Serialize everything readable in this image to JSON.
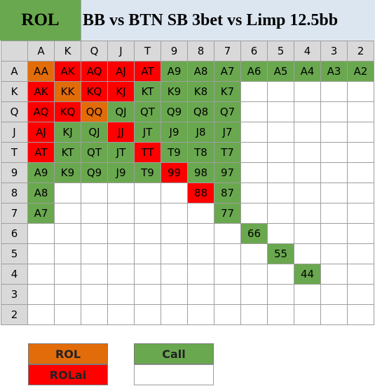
{
  "header": {
    "tag": "ROL",
    "title": "BB vs BTN SB 3bet vs Limp 12.5bb"
  },
  "ranks": [
    "A",
    "K",
    "Q",
    "J",
    "T",
    "9",
    "8",
    "7",
    "6",
    "5",
    "4",
    "3",
    "2"
  ],
  "colors": {
    "call": "#6aa84f",
    "rol": "#e36c0a",
    "rolai": "#ff0000",
    "none": "#ffffff",
    "header_bg": "#d9d9d9",
    "title_bg": "#dce6f1"
  },
  "matrix": {
    "A": {
      "A": "rol",
      "K": "rolai",
      "Q": "rolai",
      "J": "rolai",
      "T": "rolai",
      "9": "call",
      "8": "call",
      "7": "call",
      "6": "call",
      "5": "call",
      "4": "call",
      "3": "call",
      "2": "call"
    },
    "K": {
      "A": "rolai",
      "K": "rol",
      "Q": "rolai",
      "J": "rolai",
      "T": "call",
      "9": "call",
      "8": "call",
      "7": "call"
    },
    "Q": {
      "A": "rolai",
      "K": "rolai",
      "Q": "rol",
      "J": "call",
      "T": "call",
      "9": "call",
      "8": "call",
      "7": "call"
    },
    "J": {
      "A": "rolai",
      "K": "call",
      "Q": "call",
      "J": "rolai",
      "T": "call",
      "9": "call",
      "8": "call",
      "7": "call"
    },
    "T": {
      "A": "rolai",
      "K": "call",
      "Q": "call",
      "J": "call",
      "T": "rolai",
      "9": "call",
      "8": "call",
      "7": "call"
    },
    "9": {
      "A": "call",
      "K": "call",
      "Q": "call",
      "J": "call",
      "T": "call",
      "9": "rolai",
      "8": "call",
      "7": "call"
    },
    "8": {
      "A": "call",
      "8": "rolai",
      "7": "call"
    },
    "7": {
      "A": "call",
      "7": "call"
    },
    "6": {
      "6": "call"
    },
    "5": {
      "5": "call"
    },
    "4": {
      "4": "call"
    },
    "3": {},
    "2": {}
  },
  "legend": {
    "rol": "ROL",
    "rolai": "ROLai",
    "call": "Call"
  }
}
